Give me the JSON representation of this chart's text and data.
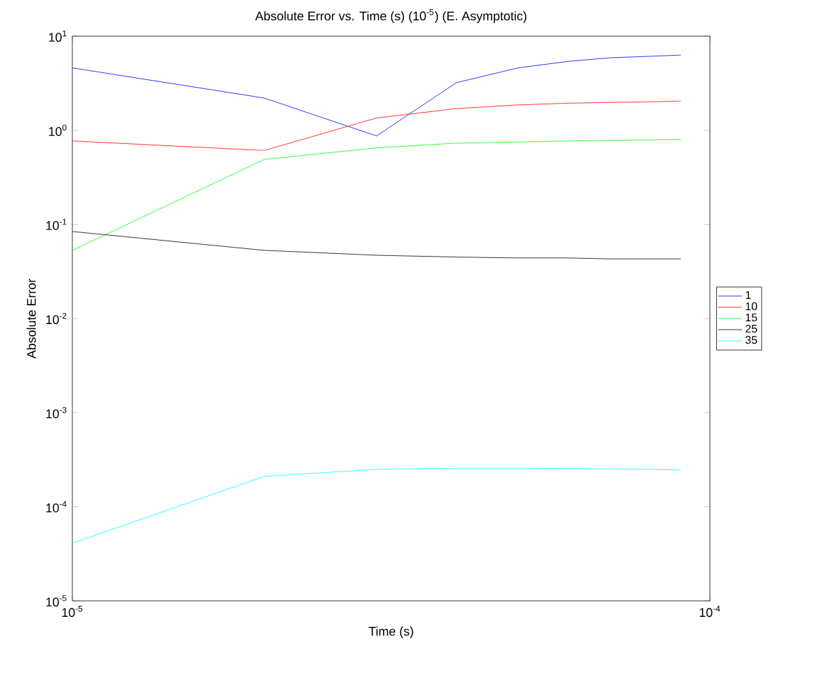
{
  "chart_data": {
    "type": "line",
    "title": "Absolute Error vs. Time (s) (10$^{-5}$) (E. Asymptotic)",
    "xlabel": "Time (s)",
    "ylabel": "Absolute Error",
    "log": "xy",
    "x": [
      1e-05,
      2e-05,
      3e-05,
      4e-05,
      5e-05,
      6e-05,
      7e-05,
      8e-05,
      9e-05
    ],
    "series": [
      {
        "name": "1",
        "color": "#0000ff",
        "values": [
          4.6,
          2.2,
          0.87,
          3.2,
          4.6,
          5.4,
          5.9,
          6.1,
          6.3
        ]
      },
      {
        "name": "10",
        "color": "#ff0000",
        "values": [
          0.77,
          0.61,
          1.35,
          1.7,
          1.86,
          1.94,
          1.98,
          2.0,
          2.05
        ]
      },
      {
        "name": "15",
        "color": "#00ff00",
        "values": [
          0.053,
          0.49,
          0.65,
          0.73,
          0.75,
          0.77,
          0.78,
          0.79,
          0.8
        ]
      },
      {
        "name": "25",
        "color": "#000000",
        "values": [
          0.084,
          0.053,
          0.047,
          0.045,
          0.044,
          0.044,
          0.043,
          0.043,
          0.043
        ]
      },
      {
        "name": "35",
        "color": "#00ffff",
        "values": [
          4.1e-05,
          0.00021,
          0.00025,
          0.000257,
          0.000257,
          0.000255,
          0.000252,
          0.00025,
          0.000246
        ]
      }
    ],
    "xlim": [
      1e-05,
      0.0001
    ],
    "ylim": [
      1e-05,
      10
    ],
    "xticks": [
      {
        "value": 1e-05,
        "label": "10$^{-5}$"
      },
      {
        "value": 0.0001,
        "label": "10$^{-4}$"
      }
    ],
    "yticks": [
      {
        "value": 1e-05,
        "label": "10$^{-5}$"
      },
      {
        "value": 0.0001,
        "label": "10$^{-4}$"
      },
      {
        "value": 0.001,
        "label": "10$^{-3}$"
      },
      {
        "value": 0.01,
        "label": "10$^{-2}$"
      },
      {
        "value": 0.1,
        "label": "10$^{-1}$"
      },
      {
        "value": 1,
        "label": "10$^{0}$"
      },
      {
        "value": 10,
        "label": "10$^{1}$"
      }
    ],
    "legend": "right",
    "grid": false,
    "marker": "none",
    "line_style": "solid"
  }
}
